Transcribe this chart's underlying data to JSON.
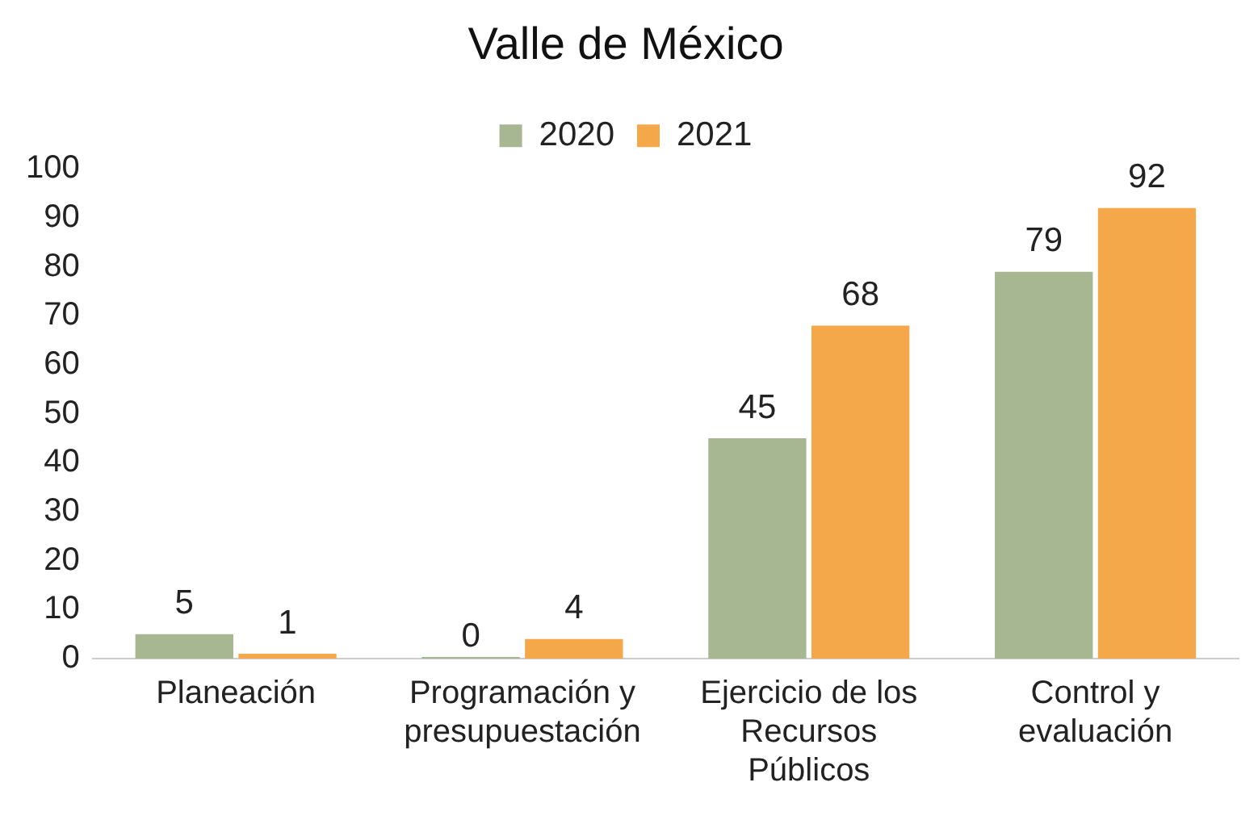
{
  "chart_data": {
    "type": "bar",
    "title": "Valle de México",
    "categories": [
      "Planeación",
      "Programación y presupuestación",
      "Ejercicio de los Recursos Públicos",
      "Control y evaluación"
    ],
    "series": [
      {
        "name": "2020",
        "color": "#a6b792",
        "values": [
          5,
          0,
          45,
          79
        ]
      },
      {
        "name": "2021",
        "color": "#f4a84a",
        "values": [
          1,
          4,
          68,
          92
        ]
      }
    ],
    "ylim": [
      0,
      100
    ],
    "yticks": [
      0,
      10,
      20,
      30,
      40,
      50,
      60,
      70,
      80,
      90,
      100
    ],
    "grid": false,
    "legend": "top",
    "data_labels": true
  }
}
